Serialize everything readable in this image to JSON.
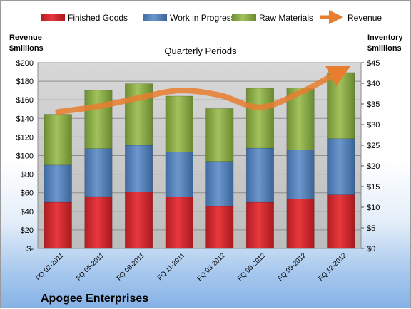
{
  "chart_data": {
    "type": "bar",
    "subtitle": "Quarterly Periods",
    "company": "Apogee Enterprises",
    "left_axis_title": [
      "Revenue",
      "$millions"
    ],
    "right_axis_title": [
      "Inventory",
      "$millions"
    ],
    "categories": [
      "FQ 02-2011",
      "FQ 05-2011",
      "FQ 08-2011",
      "FQ 11-2011",
      "FQ 03-2012",
      "FQ 06-2012",
      "FQ 09-2012",
      "FQ 12-2012"
    ],
    "left_ticks": [
      "$-",
      "$20",
      "$40",
      "$60",
      "$80",
      "$100",
      "$120",
      "$140",
      "$160",
      "$180",
      "$200"
    ],
    "right_ticks": [
      "$0",
      "$5",
      "$10",
      "$15",
      "$20",
      "$25",
      "$30",
      "$35",
      "$40",
      "$45"
    ],
    "ylim_left": [
      0,
      200
    ],
    "ylim_right": [
      0,
      45
    ],
    "stacked": true,
    "grid": true,
    "legend_position": "top",
    "series": [
      {
        "name": "Finished Goods",
        "axis": "right",
        "color": "#d9272e",
        "values": [
          11.2,
          12.6,
          13.7,
          12.5,
          10.2,
          11.2,
          12.0,
          13.0
        ]
      },
      {
        "name": "Work in Progress",
        "axis": "right",
        "color": "#4f81bd",
        "values": [
          9.0,
          11.6,
          11.3,
          10.9,
          10.9,
          13.1,
          11.9,
          13.6
        ]
      },
      {
        "name": "Raw Materials",
        "axis": "right",
        "color": "#8fb04a",
        "values": [
          12.3,
          14.1,
          14.9,
          13.5,
          12.8,
          14.5,
          15.0,
          16.0
        ]
      },
      {
        "name": "Revenue",
        "axis": "left",
        "type": "line",
        "color": "#e97d2f",
        "values": [
          147,
          153,
          162,
          170,
          165,
          152,
          168,
          191
        ]
      }
    ]
  }
}
